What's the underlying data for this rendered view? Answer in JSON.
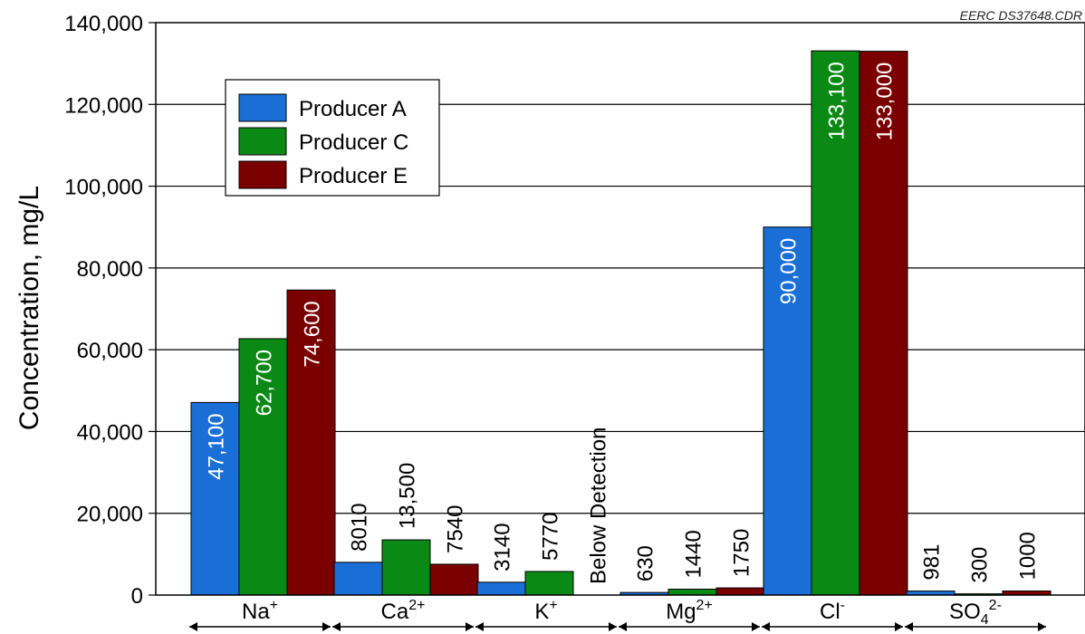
{
  "header": {
    "source_tag": "EERC DS37648.CDR"
  },
  "chart_data": {
    "type": "bar",
    "ylabel": "Concentration, mg/L",
    "xlabel": "",
    "ylim": [
      0,
      140000
    ],
    "yticks": [
      0,
      20000,
      40000,
      60000,
      80000,
      100000,
      120000,
      140000
    ],
    "ytick_labels": [
      "0",
      "20,000",
      "40,000",
      "60,000",
      "80,000",
      "100,000",
      "120,000",
      "140,000"
    ],
    "grid": true,
    "legend_position": "top-left",
    "categories": [
      {
        "base": "Na",
        "sup": "+",
        "sub": ""
      },
      {
        "base": "Ca",
        "sup": "2+",
        "sub": ""
      },
      {
        "base": "K",
        "sup": "+",
        "sub": ""
      },
      {
        "base": "Mg",
        "sup": "2+",
        "sub": ""
      },
      {
        "base": "Cl",
        "sup": "-",
        "sub": ""
      },
      {
        "base": "SO",
        "sup": "2-",
        "sub": "4"
      }
    ],
    "series": [
      {
        "name": "Producer A",
        "color": "#1a6fd6",
        "values": [
          47100,
          8010,
          3140,
          630,
          90000,
          981
        ],
        "labels": [
          "47,100",
          "8010",
          "3140",
          "630",
          "90,000",
          "981"
        ]
      },
      {
        "name": "Producer C",
        "color": "#0a8a14",
        "values": [
          62700,
          13500,
          5770,
          1440,
          133100,
          300
        ],
        "labels": [
          "62,700",
          "13,500",
          "5770",
          "1440",
          "133,100",
          "300"
        ]
      },
      {
        "name": "Producer E",
        "color": "#7a0000",
        "values": [
          74600,
          7540,
          null,
          1750,
          133000,
          1000
        ],
        "labels": [
          "74,600",
          "7540",
          "Below Detection",
          "1750",
          "133,000",
          "1000"
        ]
      }
    ]
  }
}
